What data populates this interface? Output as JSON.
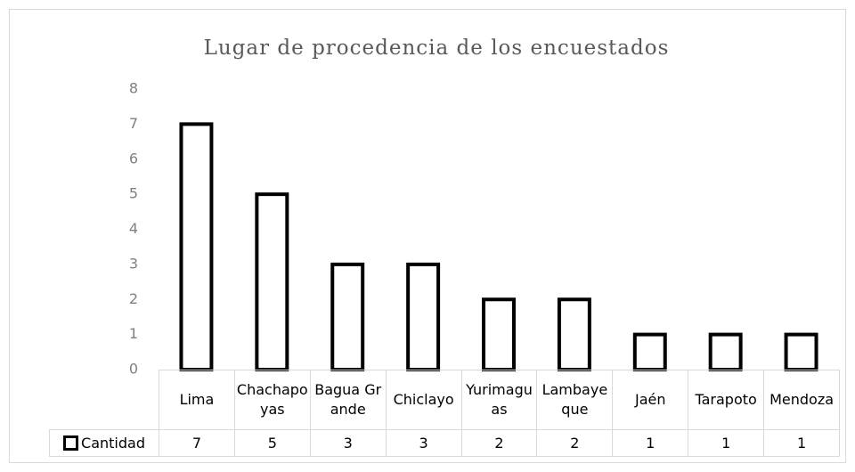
{
  "chart_data": {
    "type": "bar",
    "title": "Lugar de procedencia de los encuestados",
    "categories": [
      "Lima",
      "Chachapoyas",
      "Bagua Grande",
      "Chiclayo",
      "Yurimaguas",
      "Lambayeque",
      "Jaén",
      "Tarapoto",
      "Mendoza"
    ],
    "series": [
      {
        "name": "Cantidad",
        "color": "#ffffff",
        "values": [
          7,
          5,
          3,
          3,
          2,
          2,
          1,
          1,
          1
        ]
      }
    ],
    "ylim": [
      0,
      8
    ],
    "yticks": [
      0,
      1,
      2,
      3,
      4,
      5,
      6,
      7,
      8
    ],
    "grid": false,
    "data_table": true
  }
}
